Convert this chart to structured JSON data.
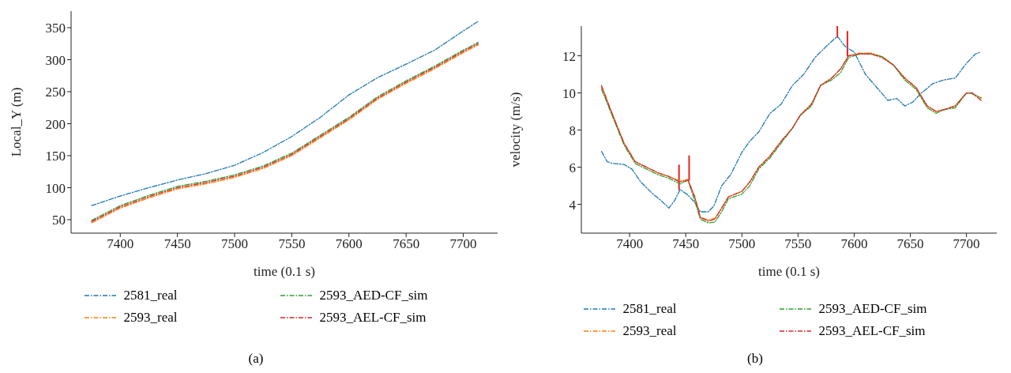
{
  "chart_data": [
    {
      "type": "line",
      "xlabel": "time (0.1 s)",
      "ylabel": "Local_Y (m)",
      "xlim": [
        7357,
        7730
      ],
      "ylim": [
        29,
        376
      ],
      "xticks": [
        7400,
        7450,
        7500,
        7550,
        7600,
        7650,
        7700
      ],
      "yticks": [
        50,
        100,
        150,
        200,
        250,
        300,
        350
      ],
      "legend": "bottom",
      "line_style": "dashed",
      "marker": "none",
      "grid": false,
      "annotations": [
        "(a)"
      ],
      "series": [
        {
          "name": "2581_real",
          "color": "#1f77b4",
          "x": [
            7375,
            7400,
            7425,
            7450,
            7475,
            7500,
            7525,
            7550,
            7575,
            7600,
            7625,
            7650,
            7675,
            7700,
            7713
          ],
          "values": [
            72,
            87,
            100,
            112,
            122,
            135,
            155,
            180,
            210,
            245,
            272,
            293,
            315,
            345,
            360
          ]
        },
        {
          "name": "2593_real",
          "color": "#ff7f0e",
          "x": [
            7375,
            7400,
            7425,
            7450,
            7475,
            7500,
            7525,
            7550,
            7575,
            7600,
            7625,
            7650,
            7675,
            7700,
            7713
          ],
          "values": [
            45,
            68,
            84,
            98,
            106,
            116,
            130,
            150,
            178,
            206,
            238,
            263,
            286,
            311,
            323
          ]
        },
        {
          "name": "2593_AED-CF_sim",
          "color": "#2ca02c",
          "x": [
            7375,
            7400,
            7425,
            7450,
            7475,
            7500,
            7525,
            7550,
            7575,
            7600,
            7625,
            7650,
            7675,
            7700,
            7713
          ],
          "values": [
            49,
            72,
            88,
            102,
            110,
            120,
            134,
            154,
            182,
            210,
            242,
            267,
            290,
            315,
            327
          ]
        },
        {
          "name": "2593_AEL-CF_sim",
          "color": "#d62728",
          "x": [
            7375,
            7400,
            7425,
            7450,
            7475,
            7500,
            7525,
            7550,
            7575,
            7600,
            7625,
            7650,
            7675,
            7700,
            7713
          ],
          "values": [
            47,
            70,
            86,
            100,
            108,
            118,
            132,
            152,
            180,
            208,
            240,
            265,
            288,
            313,
            325
          ]
        }
      ]
    },
    {
      "type": "line",
      "xlabel": "time (0.1 s)",
      "ylabel": "velocity (m/s)",
      "xlim": [
        7357,
        7727
      ],
      "ylim": [
        2.45,
        13.6
      ],
      "xticks": [
        7400,
        7450,
        7500,
        7550,
        7600,
        7650,
        7700
      ],
      "yticks": [
        4,
        6,
        8,
        10,
        12
      ],
      "legend": "bottom",
      "line_style": "dashed",
      "marker": "none",
      "grid": false,
      "annotations": [
        "(b)"
      ],
      "series": [
        {
          "color": "#e8221f",
          "line_style": "solid",
          "x": [
            7444,
            7444
          ],
          "values": [
            4.8,
            6.1
          ]
        },
        {
          "color": "#e8221f",
          "line_style": "solid",
          "x": [
            7453,
            7453
          ],
          "values": [
            5.3,
            6.6
          ]
        },
        {
          "color": "#e8221f",
          "line_style": "solid",
          "x": [
            7585,
            7585
          ],
          "values": [
            13.0,
            13.6
          ]
        },
        {
          "color": "#e8221f",
          "line_style": "solid",
          "x": [
            7594,
            7594
          ],
          "values": [
            12.0,
            13.3
          ]
        },
        {
          "name": "2581_real",
          "color": "#1f77b4",
          "x": [
            7375,
            7380,
            7385,
            7395,
            7402,
            7410,
            7420,
            7428,
            7435,
            7440,
            7445,
            7452,
            7458,
            7463,
            7470,
            7475,
            7482,
            7490,
            7500,
            7507,
            7515,
            7525,
            7535,
            7545,
            7555,
            7565,
            7575,
            7585,
            7592,
            7600,
            7610,
            7620,
            7630,
            7638,
            7645,
            7652,
            7660,
            7670,
            7680,
            7690,
            7700,
            7708,
            7713
          ],
          "values": [
            6.85,
            6.3,
            6.2,
            6.15,
            5.9,
            5.2,
            4.6,
            4.2,
            3.8,
            4.2,
            4.8,
            4.5,
            4.1,
            3.6,
            3.6,
            3.9,
            5.0,
            5.6,
            6.8,
            7.4,
            7.9,
            8.9,
            9.4,
            10.4,
            11.0,
            11.9,
            12.5,
            13.05,
            12.5,
            12.2,
            11.0,
            10.3,
            9.6,
            9.7,
            9.3,
            9.5,
            10.0,
            10.5,
            10.7,
            10.8,
            11.6,
            12.1,
            12.2
          ]
        },
        {
          "name": "2593_real",
          "color": "#ff7f0e",
          "x": [
            7375,
            7385,
            7395,
            7405,
            7415,
            7425,
            7435,
            7445,
            7452,
            7458,
            7463,
            7470,
            7476,
            7482,
            7488,
            7500,
            7507,
            7515,
            7525,
            7535,
            7545,
            7552,
            7562,
            7570,
            7580,
            7588,
            7595,
            7605,
            7615,
            7625,
            7635,
            7645,
            7655,
            7665,
            7673,
            7680,
            7690,
            7700,
            7705,
            7713
          ],
          "values": [
            10.3,
            8.8,
            7.3,
            6.3,
            6.0,
            5.7,
            5.5,
            5.25,
            5.35,
            4.4,
            3.3,
            3.15,
            3.25,
            3.8,
            4.4,
            4.7,
            5.2,
            6.0,
            6.6,
            7.4,
            8.1,
            8.8,
            9.4,
            10.4,
            10.8,
            11.3,
            12.0,
            12.15,
            12.15,
            11.95,
            11.5,
            10.8,
            10.3,
            9.3,
            9.0,
            9.1,
            9.3,
            10.0,
            10.0,
            9.7
          ]
        },
        {
          "name": "2593_AED-CF_sim",
          "color": "#2ca02c",
          "x": [
            7375,
            7385,
            7395,
            7405,
            7415,
            7425,
            7435,
            7445,
            7452,
            7458,
            7463,
            7470,
            7476,
            7482,
            7488,
            7500,
            7507,
            7515,
            7525,
            7535,
            7545,
            7552,
            7562,
            7570,
            7580,
            7588,
            7595,
            7605,
            7615,
            7625,
            7635,
            7645,
            7655,
            7665,
            7673,
            7680,
            7690,
            7700,
            7705,
            7713
          ],
          "values": [
            10.2,
            8.7,
            7.2,
            6.2,
            5.9,
            5.6,
            5.4,
            5.1,
            5.3,
            4.2,
            3.2,
            3.0,
            3.05,
            3.6,
            4.3,
            4.55,
            5.0,
            5.9,
            6.5,
            7.3,
            8.1,
            8.8,
            9.3,
            10.4,
            10.7,
            11.1,
            11.9,
            12.1,
            12.1,
            11.95,
            11.5,
            10.7,
            10.2,
            9.2,
            8.9,
            9.1,
            9.2,
            10.0,
            9.95,
            9.75
          ]
        },
        {
          "name": "2593_AEL-CF_sim",
          "color": "#d62728",
          "x": [
            7375,
            7385,
            7395,
            7405,
            7415,
            7425,
            7435,
            7445,
            7452,
            7458,
            7463,
            7470,
            7476,
            7482,
            7488,
            7500,
            7507,
            7515,
            7525,
            7535,
            7545,
            7552,
            7562,
            7570,
            7580,
            7588,
            7595,
            7605,
            7615,
            7625,
            7635,
            7645,
            7655,
            7665,
            7673,
            7680,
            7690,
            7700,
            7705,
            7713
          ],
          "values": [
            10.4,
            8.8,
            7.3,
            6.3,
            6.0,
            5.7,
            5.5,
            5.2,
            5.3,
            4.4,
            3.3,
            3.1,
            3.2,
            3.8,
            4.4,
            4.7,
            5.2,
            6.0,
            6.6,
            7.4,
            8.1,
            8.8,
            9.4,
            10.4,
            10.8,
            11.3,
            12.0,
            12.1,
            12.1,
            11.9,
            11.5,
            10.8,
            10.3,
            9.3,
            9.0,
            9.1,
            9.3,
            10.0,
            10.0,
            9.6
          ]
        }
      ]
    }
  ]
}
